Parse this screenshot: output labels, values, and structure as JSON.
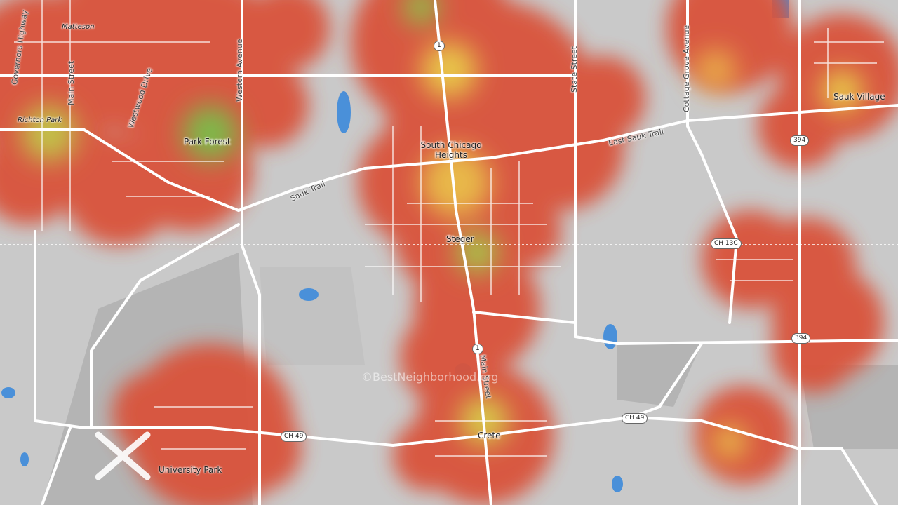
{
  "places": [
    "Matteson",
    "Richton Park",
    "Park Forest",
    "South Chicago Heights",
    "Steger",
    "Sauk Village",
    "University Park",
    "Crete"
  ],
  "roads": [
    "Governors Highway",
    "Main Street",
    "Westwood Drive",
    "Western Avenue",
    "Sauk Trail",
    "State Street",
    "East Sauk Trail",
    "Cottage Grove Avenue",
    "Main Street"
  ],
  "shields": [
    "1",
    "1",
    "394",
    "394",
    "CH 13C",
    "CH 49",
    "CH 49"
  ],
  "watermark": "©BestNeighborhood.org"
}
